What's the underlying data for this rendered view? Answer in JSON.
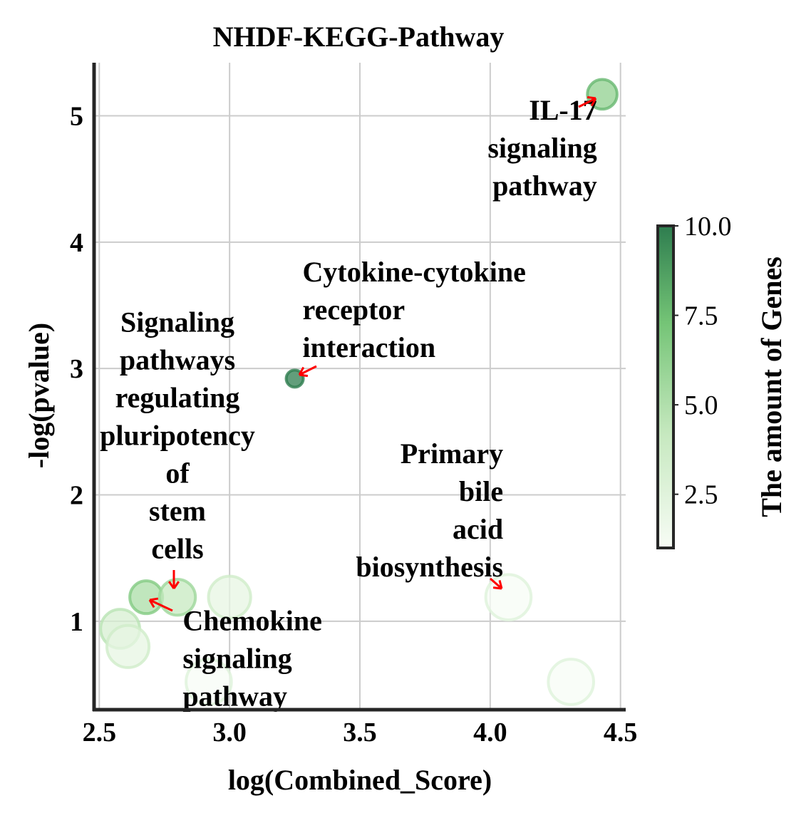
{
  "chart_data": {
    "type": "scatter",
    "title": "NHDF-KEGG-Pathway",
    "xlabel": "log(Combined_Score)",
    "ylabel": "-log(pvalue)",
    "xlim": [
      2.48,
      4.52
    ],
    "ylim": [
      0.3,
      5.42
    ],
    "xticks": [
      2.5,
      3.0,
      3.5,
      4.0,
      4.5
    ],
    "xtick_labels": [
      "2.5",
      "3.0",
      "3.5",
      "4.0",
      "4.5"
    ],
    "yticks": [
      1,
      2,
      3,
      4,
      5
    ],
    "ytick_labels": [
      "1",
      "2",
      "3",
      "4",
      "5"
    ],
    "grid": true,
    "colorbar": {
      "label": "The amount of Genes",
      "range": [
        1,
        10
      ],
      "ticks": [
        2.5,
        5.0,
        7.5,
        10.0
      ],
      "tick_labels": [
        "2.5",
        "5.0",
        "7.5",
        "10.0"
      ],
      "colors": [
        "#f7fcf5",
        "#c7e9c0",
        "#74c476",
        "#2e7d4f"
      ]
    },
    "points": [
      {
        "x": 4.43,
        "y": 5.17,
        "genes": 6
      },
      {
        "x": 3.25,
        "y": 2.92,
        "genes": 10
      },
      {
        "x": 2.68,
        "y": 1.19,
        "genes": 5
      },
      {
        "x": 2.8,
        "y": 1.19,
        "genes": 4
      },
      {
        "x": 3.0,
        "y": 1.19,
        "genes": 2
      },
      {
        "x": 4.07,
        "y": 1.19,
        "genes": 1
      },
      {
        "x": 2.58,
        "y": 0.94,
        "genes": 3
      },
      {
        "x": 2.61,
        "y": 0.8,
        "genes": 2
      },
      {
        "x": 2.92,
        "y": 0.52,
        "genes": 1
      },
      {
        "x": 4.31,
        "y": 0.52,
        "genes": 1
      }
    ],
    "annotations": [
      {
        "lines": [
          "IL-17",
          "signaling",
          "pathway"
        ],
        "anchor": "end",
        "x": 4.41,
        "y": 4.97,
        "target": [
          4.43,
          5.17
        ]
      },
      {
        "lines": [
          "Cytokine-cytokine",
          "receptor",
          "interaction"
        ],
        "anchor": "start",
        "x": 3.28,
        "y": 3.69,
        "target": [
          3.25,
          2.92
        ]
      },
      {
        "lines": [
          "Signaling",
          "pathways",
          "regulating",
          "pluripotency",
          "of",
          "stem",
          "cells"
        ],
        "anchor": "middle",
        "x": 2.8,
        "y": 3.29,
        "target": [
          2.8,
          1.19
        ]
      },
      {
        "lines": [
          "Primary",
          "bile",
          "acid",
          "biosynthesis"
        ],
        "anchor": "end",
        "x": 4.05,
        "y": 2.25,
        "target": [
          4.07,
          1.19
        ]
      },
      {
        "lines": [
          "Chemokine",
          "signaling",
          "pathway"
        ],
        "anchor": "start",
        "x": 2.82,
        "y": 0.93,
        "target": [
          2.68,
          1.19
        ]
      }
    ]
  }
}
